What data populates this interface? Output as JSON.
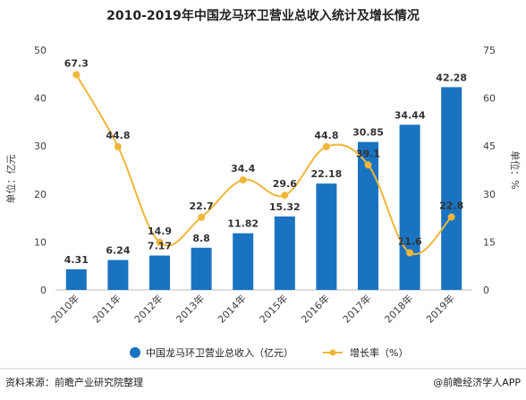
{
  "chart_data": {
    "type": "bar",
    "title": "2010-2019年中国龙马环卫营业总收入统计及增长情况",
    "categories": [
      "2010年",
      "2011年",
      "2012年",
      "2013年",
      "2014年",
      "2015年",
      "2016年",
      "2017年",
      "2018年",
      "2019年"
    ],
    "series": [
      {
        "name": "中国龙马环卫营业总收入（亿元）",
        "type": "bar",
        "axis": "left",
        "values": [
          4.31,
          6.24,
          7.17,
          8.8,
          11.82,
          15.32,
          22.18,
          30.85,
          34.44,
          42.28
        ],
        "labels": [
          "4.31",
          "6.24",
          "7.17",
          "8.8",
          "11.82",
          "15.32",
          "22.18",
          "30.85",
          "34.44",
          "42.28"
        ]
      },
      {
        "name": "增长率（%）",
        "type": "line",
        "axis": "right",
        "values": [
          67.3,
          44.8,
          14.9,
          22.7,
          34.4,
          29.6,
          44.8,
          39.1,
          11.6,
          22.8
        ],
        "labels": [
          "67.3",
          "44.8",
          "14.9",
          "22.7",
          "34.4",
          "29.6",
          "44.8",
          "39.1",
          "11.6",
          "22.8"
        ]
      }
    ],
    "ylabel": "单位：亿元",
    "ylabel_right": "单位：%",
    "ylim": [
      0,
      50
    ],
    "ylim_right": [
      0,
      75
    ],
    "yticks": [
      "0",
      "10",
      "20",
      "30",
      "40",
      "50"
    ],
    "yticks_right": [
      "0",
      "15",
      "30",
      "45",
      "60",
      "75"
    ],
    "grid": false,
    "legend_position": "bottom",
    "colors": {
      "bar": "#1a73c1",
      "line": "#f0b63a"
    }
  },
  "footer": {
    "source": "资料来源：前瞻产业研究院整理",
    "brand": "@前瞻经济学人APP"
  }
}
